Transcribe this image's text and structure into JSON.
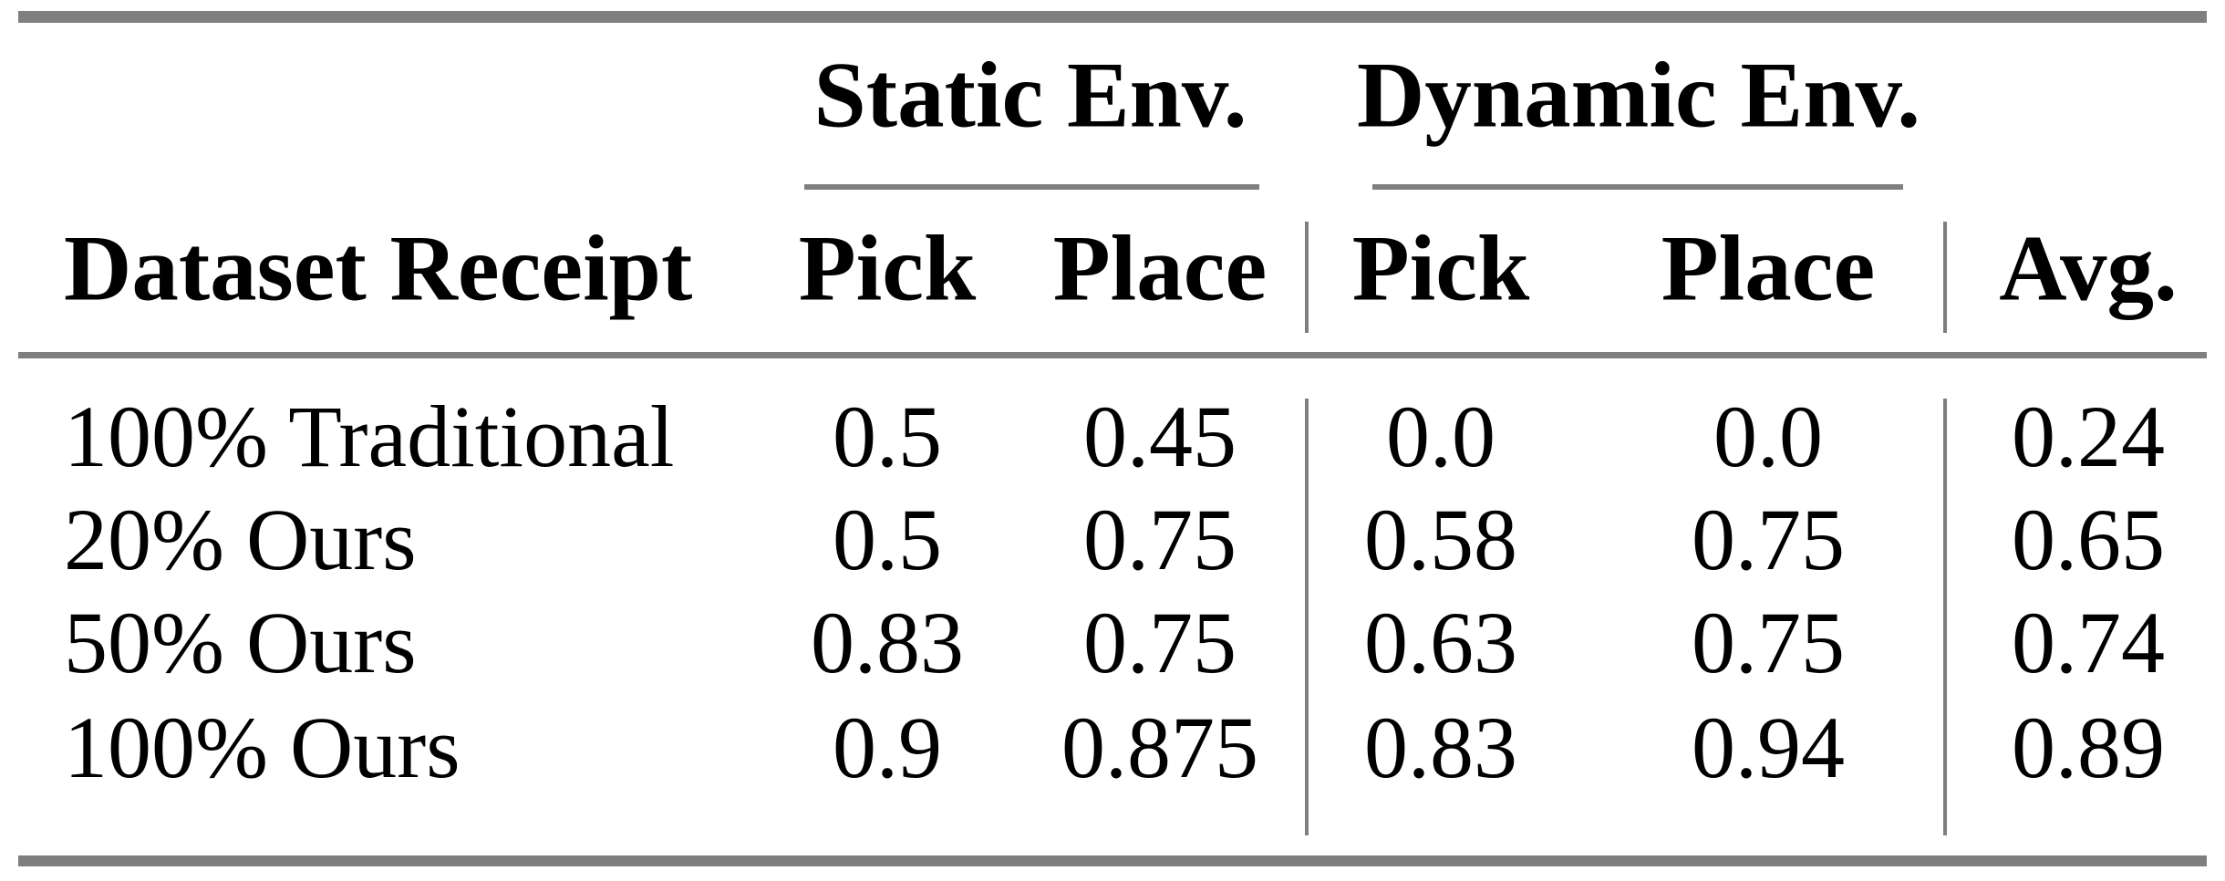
{
  "colors": {
    "rule_gray": "#7f7f7f",
    "text": "#000000",
    "background": "#ffffff"
  },
  "table": {
    "group_headers": [
      {
        "label": "Static Env."
      },
      {
        "label": "Dynamic Env."
      }
    ],
    "column_headers": {
      "dataset": "Dataset Receipt",
      "static_pick": "Pick",
      "static_place": "Place",
      "dynamic_pick": "Pick",
      "dynamic_place": "Place",
      "avg": "Avg."
    },
    "rows": [
      {
        "dataset": "100% Traditional",
        "static_pick": "0.5",
        "static_place": "0.45",
        "dynamic_pick": "0.0",
        "dynamic_place": "0.0",
        "avg": "0.24"
      },
      {
        "dataset": "20% Ours",
        "static_pick": "0.5",
        "static_place": "0.75",
        "dynamic_pick": "0.58",
        "dynamic_place": "0.75",
        "avg": "0.65"
      },
      {
        "dataset": "50% Ours",
        "static_pick": "0.83",
        "static_place": "0.75",
        "dynamic_pick": "0.63",
        "dynamic_place": "0.75",
        "avg": "0.74"
      },
      {
        "dataset": "100% Ours",
        "static_pick": "0.9",
        "static_place": "0.875",
        "dynamic_pick": "0.83",
        "dynamic_place": "0.94",
        "avg": "0.89"
      }
    ]
  },
  "chart_data": {
    "type": "table",
    "columns": [
      "Dataset Receipt",
      "Static Env. Pick",
      "Static Env. Place",
      "Dynamic Env. Pick",
      "Dynamic Env. Place",
      "Avg."
    ],
    "rows": [
      [
        "100% Traditional",
        0.5,
        0.45,
        0.0,
        0.0,
        0.24
      ],
      [
        "20% Ours",
        0.5,
        0.75,
        0.58,
        0.75,
        0.65
      ],
      [
        "50% Ours",
        0.83,
        0.75,
        0.63,
        0.75,
        0.74
      ],
      [
        "100% Ours",
        0.9,
        0.875,
        0.83,
        0.94,
        0.89
      ]
    ]
  }
}
